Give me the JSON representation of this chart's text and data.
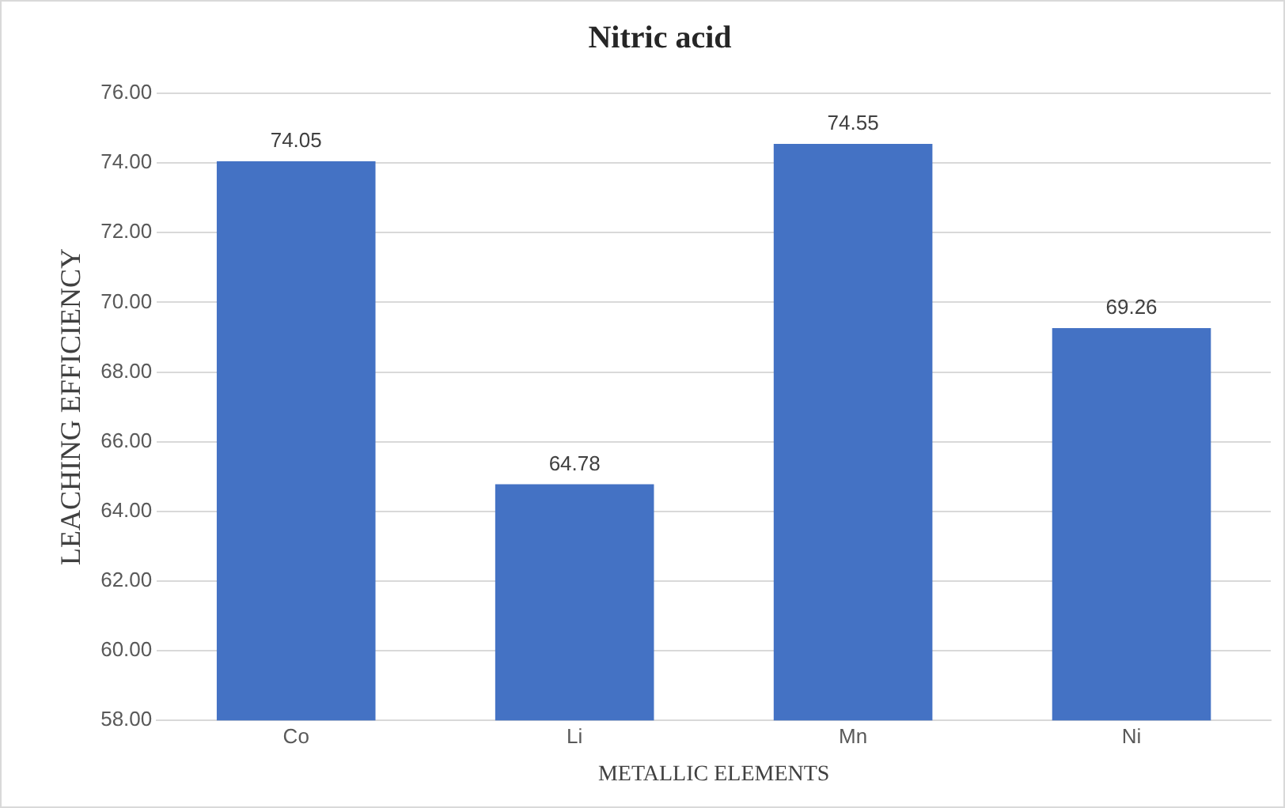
{
  "chart_data": {
    "type": "bar",
    "title": "Nitric acid",
    "xlabel": "METALLIC ELEMENTS",
    "ylabel": "LEACHING EFFICIENCY",
    "categories": [
      "Co",
      "Li",
      "Mn",
      "Ni"
    ],
    "values": [
      74.05,
      64.78,
      74.55,
      69.26
    ],
    "color": "#4472c4",
    "ylim": [
      58,
      76
    ],
    "yticks": [
      {
        "value": 58,
        "label": "58.00"
      },
      {
        "value": 60,
        "label": "60.00"
      },
      {
        "value": 62,
        "label": "62.00"
      },
      {
        "value": 64,
        "label": "64.00"
      },
      {
        "value": 66,
        "label": "66.00"
      },
      {
        "value": 68,
        "label": "68.00"
      },
      {
        "value": 70,
        "label": "70.00"
      },
      {
        "value": 72,
        "label": "72.00"
      },
      {
        "value": 74,
        "label": "74.00"
      },
      {
        "value": 76,
        "label": "76.00"
      }
    ],
    "grid": "y",
    "data_labels": true,
    "legend": false
  }
}
